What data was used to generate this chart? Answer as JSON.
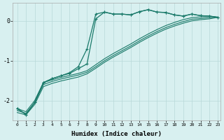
{
  "xlabel": "Humidex (Indice chaleur)",
  "bg_color": "#d8f0f0",
  "line_color": "#1a7a6a",
  "grid_color": "#b8d8d8",
  "xlim": [
    -0.5,
    23.3
  ],
  "ylim": [
    -2.5,
    0.45
  ],
  "yticks": [
    0,
    -1,
    -2
  ],
  "xticks": [
    0,
    1,
    2,
    3,
    4,
    5,
    6,
    7,
    8,
    9,
    10,
    11,
    12,
    13,
    14,
    15,
    16,
    17,
    18,
    19,
    20,
    21,
    22,
    23
  ],
  "line1_x": [
    0,
    1,
    2,
    3,
    4,
    5,
    6,
    7,
    8,
    9,
    10,
    11,
    12,
    13,
    14,
    15,
    16,
    17,
    18,
    19,
    20,
    21,
    22,
    23
  ],
  "line1_y": [
    -2.2,
    -2.35,
    -2.05,
    -1.55,
    -1.45,
    -1.38,
    -1.3,
    -1.15,
    -0.7,
    0.17,
    0.22,
    0.17,
    0.17,
    0.15,
    0.23,
    0.28,
    0.22,
    0.21,
    0.15,
    0.12,
    0.17,
    0.13,
    0.12,
    0.09
  ],
  "line2_x": [
    0,
    1,
    2,
    3,
    4,
    5,
    6,
    7,
    8,
    9,
    10,
    11,
    12,
    13,
    14,
    15,
    16,
    17,
    18,
    19,
    20,
    21,
    22,
    23
  ],
  "line2_y": [
    -2.2,
    -2.35,
    -2.05,
    -1.55,
    -1.45,
    -1.38,
    -1.32,
    -1.2,
    -1.08,
    0.05,
    0.22,
    0.17,
    0.17,
    0.15,
    0.23,
    0.28,
    0.22,
    0.21,
    0.15,
    0.12,
    0.17,
    0.13,
    0.12,
    0.09
  ],
  "line3_x": [
    0,
    1,
    2,
    3,
    4,
    5,
    6,
    7,
    8,
    9,
    10,
    11,
    12,
    13,
    14,
    15,
    16,
    17,
    18,
    19,
    20,
    21,
    22,
    23
  ],
  "line3_y": [
    -2.2,
    -2.28,
    -2.0,
    -1.55,
    -1.48,
    -1.42,
    -1.37,
    -1.32,
    -1.25,
    -1.1,
    -0.95,
    -0.82,
    -0.7,
    -0.58,
    -0.45,
    -0.33,
    -0.22,
    -0.12,
    -0.04,
    0.03,
    0.08,
    0.1,
    0.11,
    0.09
  ],
  "line4_x": [
    0,
    1,
    2,
    3,
    4,
    5,
    6,
    7,
    8,
    9,
    10,
    11,
    12,
    13,
    14,
    15,
    16,
    17,
    18,
    19,
    20,
    21,
    22,
    23
  ],
  "line4_y": [
    -2.25,
    -2.32,
    -2.05,
    -1.6,
    -1.52,
    -1.46,
    -1.41,
    -1.36,
    -1.29,
    -1.15,
    -1.0,
    -0.87,
    -0.75,
    -0.63,
    -0.5,
    -0.38,
    -0.27,
    -0.17,
    -0.09,
    -0.02,
    0.04,
    0.06,
    0.08,
    0.09
  ],
  "line5_x": [
    0,
    1,
    2,
    3,
    4,
    5,
    6,
    7,
    8,
    9,
    10,
    11,
    12,
    13,
    14,
    15,
    16,
    17,
    18,
    19,
    20,
    21,
    22,
    23
  ],
  "line5_y": [
    -2.3,
    -2.36,
    -2.1,
    -1.65,
    -1.57,
    -1.51,
    -1.46,
    -1.41,
    -1.33,
    -1.19,
    -1.04,
    -0.91,
    -0.79,
    -0.67,
    -0.54,
    -0.42,
    -0.31,
    -0.21,
    -0.13,
    -0.06,
    0.0,
    0.03,
    0.05,
    0.09
  ]
}
